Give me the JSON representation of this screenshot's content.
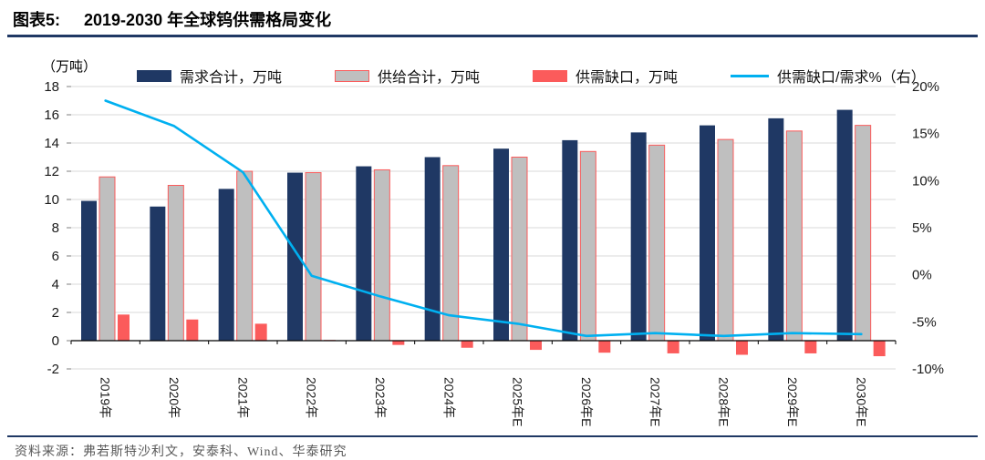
{
  "header": {
    "figure_label": "图表5:",
    "title": "2019-2030 年全球钨供需格局变化"
  },
  "axes": {
    "left_unit_label": "（万吨）"
  },
  "legend": [
    {
      "label": "需求合计，万吨",
      "type": "bar",
      "color": "#1F3864"
    },
    {
      "label": "供给合计，万吨",
      "type": "bar",
      "color": "#BFBFBF",
      "border": "#FB5B5B"
    },
    {
      "label": "供需缺口，万吨",
      "type": "bar",
      "color": "#FB5B5B"
    },
    {
      "label": "供需缺口/需求%（右）",
      "type": "line",
      "color": "#00B0F0"
    }
  ],
  "source": "资料来源：弗若斯特沙利文，安泰科、Wind、华泰研究",
  "colors": {
    "accent_navy": "#1F3864",
    "gridline": "#D9D9D9",
    "bar_navy": "#1F3864",
    "bar_gray": "#BFBFBF",
    "bar_red": "#FB5B5B",
    "line_cyan": "#00B0F0"
  },
  "chart_data": {
    "type": "bar",
    "title": "2019-2030 年全球钨供需格局变化",
    "legend_position": "top",
    "grid": "horizontal",
    "categories": [
      "2019年",
      "2020年",
      "2021年",
      "2022年",
      "2023年",
      "2024年",
      "2025年E",
      "2026年E",
      "2027年E",
      "2028年E",
      "2029年E",
      "2030年E"
    ],
    "series": [
      {
        "name": "需求合计，万吨",
        "type": "bar",
        "axis": "left",
        "color": "#1F3864",
        "values": [
          9.9,
          9.5,
          10.75,
          11.9,
          12.35,
          13.0,
          13.6,
          14.2,
          14.75,
          15.25,
          15.75,
          16.35
        ]
      },
      {
        "name": "供给合计，万吨",
        "type": "bar",
        "axis": "left",
        "color": "#BFBFBF",
        "border": "#FB5B5B",
        "values": [
          11.6,
          11.0,
          12.0,
          11.9,
          12.1,
          12.4,
          13.0,
          13.4,
          13.85,
          14.25,
          14.85,
          15.25
        ]
      },
      {
        "name": "供需缺口，万吨",
        "type": "bar",
        "axis": "left",
        "color": "#FB5B5B",
        "values": [
          1.85,
          1.5,
          1.2,
          0.05,
          -0.3,
          -0.5,
          -0.65,
          -0.85,
          -0.9,
          -1.0,
          -0.9,
          -1.1
        ]
      },
      {
        "name": "供需缺口/需求%（右）",
        "type": "line",
        "axis": "right",
        "color": "#00B0F0",
        "values": [
          18.5,
          15.8,
          10.9,
          -0.1,
          -2.3,
          -4.3,
          -5.2,
          -6.5,
          -6.2,
          -6.5,
          -6.2,
          -6.3
        ]
      }
    ],
    "left_axis": {
      "label": "（万吨）",
      "min": -2,
      "max": 18,
      "step": 2
    },
    "right_axis": {
      "min": -10,
      "max": 20,
      "step": 5,
      "unit": "%"
    }
  }
}
